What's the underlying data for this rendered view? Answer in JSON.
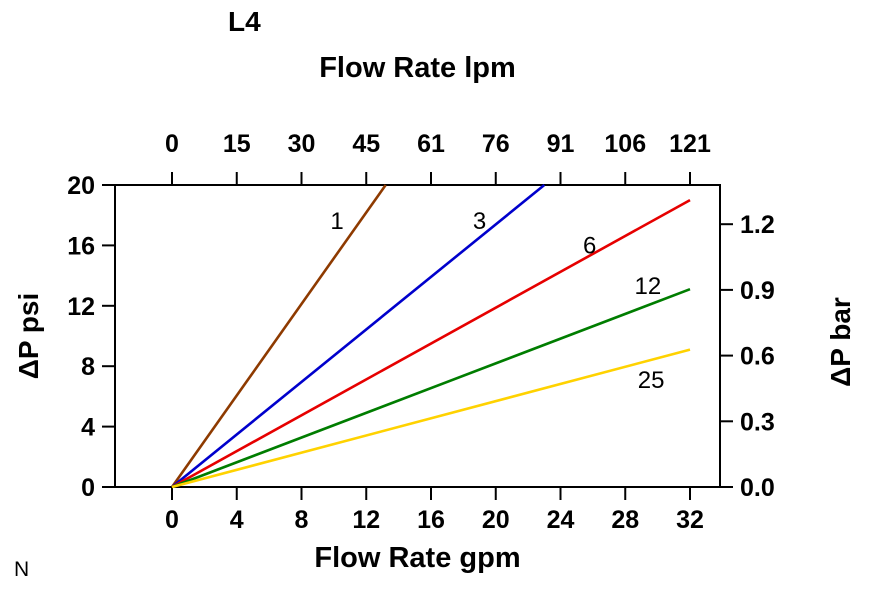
{
  "page": {
    "corner_mark": "N"
  },
  "chart_data": {
    "type": "line",
    "title": "L4",
    "x_top_label": "Flow Rate lpm",
    "x_bottom_label": "Flow Rate gpm",
    "y_left_label": "ΔP psi",
    "y_right_label": "ΔP bar",
    "x_bottom_ticks": [
      0,
      4,
      8,
      12,
      16,
      20,
      24,
      28,
      32
    ],
    "x_top_ticks": [
      "0",
      "15",
      "30",
      "45",
      "61",
      "76",
      "91",
      "106",
      "121"
    ],
    "y_left_ticks": [
      0,
      4,
      8,
      12,
      16,
      20
    ],
    "y_right_ticks": [
      "0.0",
      "0.3",
      "0.6",
      "0.9",
      "1.2"
    ],
    "x_range_gpm": [
      0,
      32
    ],
    "y_range_psi": [
      0,
      20
    ],
    "bar_per_psi": 0.068948,
    "grid": false,
    "legend": "labels-on-lines",
    "series": [
      {
        "name": "1",
        "color": "#8e3a00",
        "points": [
          [
            0,
            0
          ],
          [
            13.2,
            20.0
          ]
        ],
        "label_at": [
          10.2,
          17.6
        ]
      },
      {
        "name": "3",
        "color": "#0000cc",
        "points": [
          [
            0,
            0
          ],
          [
            23.0,
            20.0
          ]
        ],
        "label_at": [
          19.0,
          17.6
        ]
      },
      {
        "name": "6",
        "color": "#e60000",
        "points": [
          [
            0,
            0
          ],
          [
            32.0,
            19.0
          ]
        ],
        "label_at": [
          25.8,
          16.0
        ]
      },
      {
        "name": "12",
        "color": "#007d00",
        "points": [
          [
            0,
            0
          ],
          [
            32.0,
            13.1
          ]
        ],
        "label_at": [
          29.4,
          13.3
        ]
      },
      {
        "name": "25",
        "color": "#ffd200",
        "points": [
          [
            0,
            0
          ],
          [
            32.0,
            9.1
          ]
        ],
        "label_at": [
          29.6,
          7.1
        ]
      }
    ]
  }
}
